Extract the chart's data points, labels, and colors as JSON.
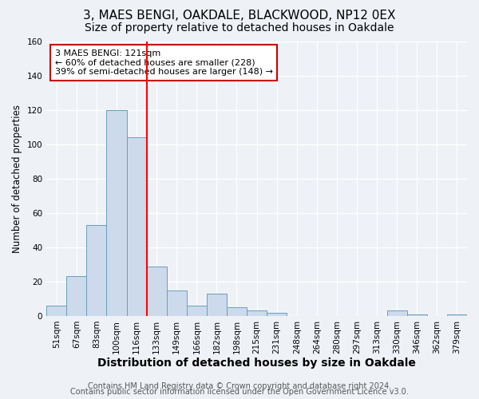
{
  "title": "3, MAES BENGI, OAKDALE, BLACKWOOD, NP12 0EX",
  "subtitle": "Size of property relative to detached houses in Oakdale",
  "xlabel": "Distribution of detached houses by size in Oakdale",
  "ylabel": "Number of detached properties",
  "bar_labels": [
    "51sqm",
    "67sqm",
    "83sqm",
    "100sqm",
    "116sqm",
    "133sqm",
    "149sqm",
    "166sqm",
    "182sqm",
    "198sqm",
    "215sqm",
    "231sqm",
    "248sqm",
    "264sqm",
    "280sqm",
    "297sqm",
    "313sqm",
    "330sqm",
    "346sqm",
    "362sqm",
    "379sqm"
  ],
  "bar_values": [
    6,
    23,
    53,
    120,
    104,
    29,
    15,
    6,
    13,
    5,
    3,
    2,
    0,
    0,
    0,
    0,
    0,
    3,
    1,
    0,
    1
  ],
  "bar_color": "#ccdaeb",
  "bar_edge_color": "#6a9ec0",
  "highlight_line_color": "red",
  "annotation_line1": "3 MAES BENGI: 121sqm",
  "annotation_line2": "← 60% of detached houses are smaller (228)",
  "annotation_line3": "39% of semi-detached houses are larger (148) →",
  "annotation_box_facecolor": "white",
  "annotation_box_edgecolor": "#cc0000",
  "ylim": [
    0,
    160
  ],
  "yticks": [
    0,
    20,
    40,
    60,
    80,
    100,
    120,
    140,
    160
  ],
  "background_color": "#eef2f7",
  "plot_bg_color": "#eef2f7",
  "grid_color": "white",
  "footer1": "Contains HM Land Registry data © Crown copyright and database right 2024.",
  "footer2": "Contains public sector information licensed under the Open Government Licence v3.0.",
  "title_fontsize": 11,
  "subtitle_fontsize": 10,
  "xlabel_fontsize": 10,
  "ylabel_fontsize": 8.5,
  "tick_fontsize": 7.5,
  "annotation_fontsize": 8,
  "footer_fontsize": 7
}
